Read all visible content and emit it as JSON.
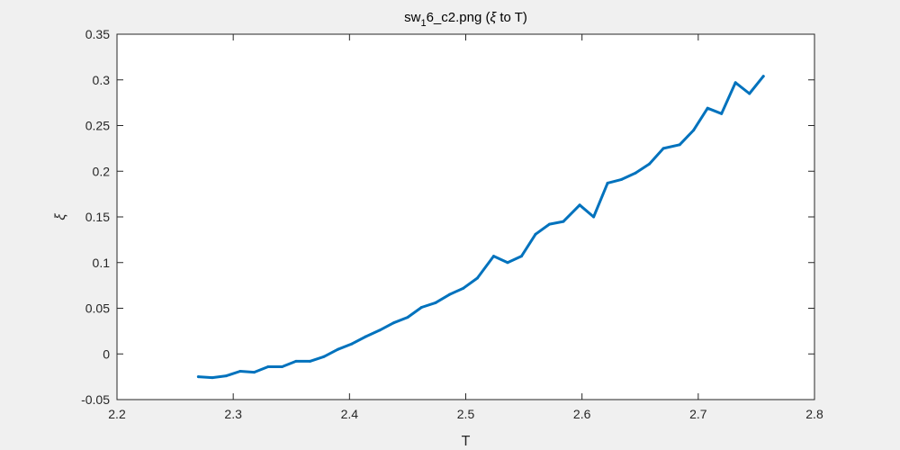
{
  "chart_data": {
    "type": "line",
    "title_parts": [
      "sw",
      "1",
      "6_c2.png (",
      "ξ",
      " to T)"
    ],
    "xlabel": "T",
    "ylabel": "ξ",
    "xlim": [
      2.2,
      2.8
    ],
    "ylim": [
      -0.05,
      0.35
    ],
    "xticks": [
      "2.2",
      "2.3",
      "2.4",
      "2.5",
      "2.6",
      "2.7",
      "2.8"
    ],
    "yticks": [
      "-0.05",
      "0",
      "0.05",
      "0.1",
      "0.15",
      "0.2",
      "0.25",
      "0.3",
      "0.35"
    ],
    "grid": false,
    "line_color": "#0072bd",
    "series": [
      {
        "x": [
          2.27,
          2.282,
          2.294,
          2.306,
          2.318,
          2.33,
          2.342,
          2.354,
          2.366,
          2.378,
          2.39,
          2.402,
          2.414,
          2.426,
          2.438,
          2.45,
          2.462,
          2.474,
          2.486,
          2.498,
          2.51,
          2.524,
          2.536,
          2.548,
          2.56,
          2.572,
          2.584,
          2.598,
          2.61,
          2.622,
          2.634,
          2.646,
          2.658,
          2.67,
          2.684,
          2.696,
          2.708,
          2.72,
          2.732,
          2.744,
          2.756
        ],
        "y": [
          -0.025,
          -0.026,
          -0.024,
          -0.019,
          -0.02,
          -0.014,
          -0.014,
          -0.008,
          -0.008,
          -0.003,
          0.005,
          0.011,
          0.019,
          0.026,
          0.034,
          0.04,
          0.051,
          0.056,
          0.065,
          0.072,
          0.083,
          0.107,
          0.1,
          0.107,
          0.131,
          0.142,
          0.145,
          0.163,
          0.15,
          0.187,
          0.191,
          0.198,
          0.208,
          0.225,
          0.229,
          0.245,
          0.269,
          0.263,
          0.297,
          0.285,
          0.304
        ]
      }
    ]
  }
}
